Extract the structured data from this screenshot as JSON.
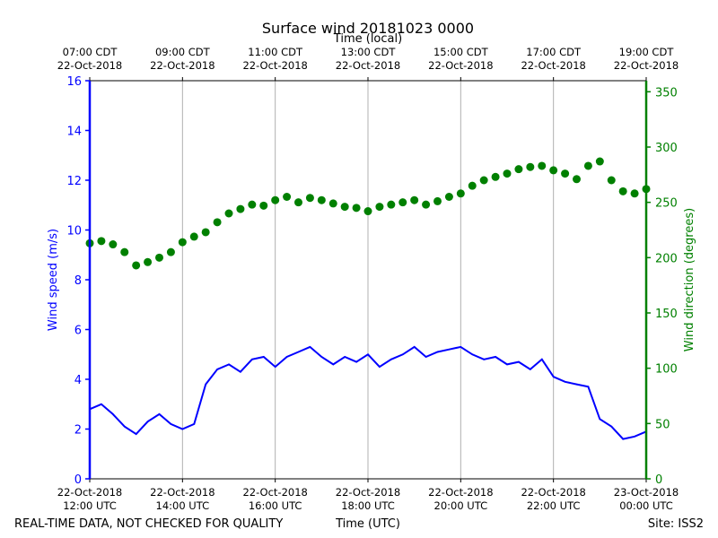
{
  "chart_data": {
    "type": "line",
    "title": "Surface wind 20181023 0000",
    "top_axis_title": "Time (local)",
    "xlabel": "Time (UTC)",
    "ylabel_left": "Wind speed (m/s)",
    "ylabel_right": "Wind direction (degrees)",
    "ylim_left": [
      0,
      16
    ],
    "ylim_right": [
      0,
      360
    ],
    "left_ticks": [
      "0",
      "2",
      "4",
      "6",
      "8",
      "10",
      "12",
      "14",
      "16"
    ],
    "right_ticks": [
      "0",
      "50",
      "100",
      "150",
      "200",
      "250",
      "300",
      "350"
    ],
    "x_ticks_utc": [
      [
        "22-Oct-2018",
        "12:00 UTC"
      ],
      [
        "22-Oct-2018",
        "14:00 UTC"
      ],
      [
        "22-Oct-2018",
        "16:00 UTC"
      ],
      [
        "22-Oct-2018",
        "18:00 UTC"
      ],
      [
        "22-Oct-2018",
        "20:00 UTC"
      ],
      [
        "22-Oct-2018",
        "22:00 UTC"
      ],
      [
        "23-Oct-2018",
        "00:00 UTC"
      ]
    ],
    "x_ticks_local": [
      [
        "07:00 CDT",
        "22-Oct-2018"
      ],
      [
        "09:00 CDT",
        "22-Oct-2018"
      ],
      [
        "11:00 CDT",
        "22-Oct-2018"
      ],
      [
        "13:00 CDT",
        "22-Oct-2018"
      ],
      [
        "15:00 CDT",
        "22-Oct-2018"
      ],
      [
        "17:00 CDT",
        "22-Oct-2018"
      ],
      [
        "19:00 CDT",
        "22-Oct-2018"
      ]
    ],
    "x_range_hours": [
      0,
      12
    ],
    "grid": "vertical",
    "series": [
      {
        "name": "Wind speed (m/s)",
        "axis": "left",
        "style": "line",
        "color": "#0000ff",
        "x_hours": [
          0,
          0.25,
          0.5,
          0.75,
          1,
          1.25,
          1.5,
          1.75,
          2,
          2.25,
          2.5,
          2.75,
          3,
          3.25,
          3.5,
          3.75,
          4,
          4.25,
          4.5,
          4.75,
          5,
          5.25,
          5.5,
          5.75,
          6,
          6.25,
          6.5,
          6.75,
          7,
          7.25,
          7.5,
          7.75,
          8,
          8.25,
          8.5,
          8.75,
          9,
          9.25,
          9.5,
          9.75,
          10,
          10.25,
          10.5,
          10.75,
          11,
          11.25,
          11.5,
          11.75,
          12
        ],
        "values": [
          2.8,
          3.0,
          2.6,
          2.1,
          1.8,
          2.3,
          2.6,
          2.2,
          2.0,
          2.2,
          3.8,
          4.4,
          4.6,
          4.3,
          4.8,
          4.9,
          4.5,
          4.9,
          5.1,
          5.3,
          4.9,
          4.6,
          4.9,
          4.7,
          5.0,
          4.5,
          4.8,
          5.0,
          5.3,
          4.9,
          5.1,
          5.2,
          5.3,
          5.0,
          4.8,
          4.9,
          4.6,
          4.7,
          4.4,
          4.8,
          4.1,
          3.9,
          3.8,
          3.7,
          2.4,
          2.1,
          1.6,
          1.7,
          1.9
        ]
      },
      {
        "name": "Wind direction (degrees)",
        "axis": "right",
        "style": "scatter",
        "color": "#008000",
        "x_hours": [
          0,
          0.25,
          0.5,
          0.75,
          1,
          1.25,
          1.5,
          1.75,
          2,
          2.25,
          2.5,
          2.75,
          3,
          3.25,
          3.5,
          3.75,
          4,
          4.25,
          4.5,
          4.75,
          5,
          5.25,
          5.5,
          5.75,
          6,
          6.25,
          6.5,
          6.75,
          7,
          7.25,
          7.5,
          7.75,
          8,
          8.25,
          8.5,
          8.75,
          9,
          9.25,
          9.5,
          9.75,
          10,
          10.25,
          10.5,
          10.75,
          11,
          11.25,
          11.5,
          11.75,
          12
        ],
        "values": [
          213,
          215,
          212,
          205,
          193,
          196,
          200,
          205,
          214,
          219,
          223,
          232,
          240,
          244,
          248,
          247,
          252,
          255,
          250,
          254,
          252,
          249,
          246,
          245,
          242,
          246,
          248,
          250,
          252,
          248,
          251,
          255,
          258,
          265,
          270,
          273,
          276,
          280,
          282,
          283,
          279,
          276,
          271,
          283,
          287,
          270,
          260,
          258,
          262
        ]
      }
    ]
  },
  "footer": {
    "disclaimer": "REAL-TIME DATA, NOT CHECKED FOR QUALITY",
    "site": "Site: ISS2"
  },
  "colors": {
    "speed": "#0000ff",
    "direction": "#008000",
    "grid": "#b0b0b0"
  }
}
